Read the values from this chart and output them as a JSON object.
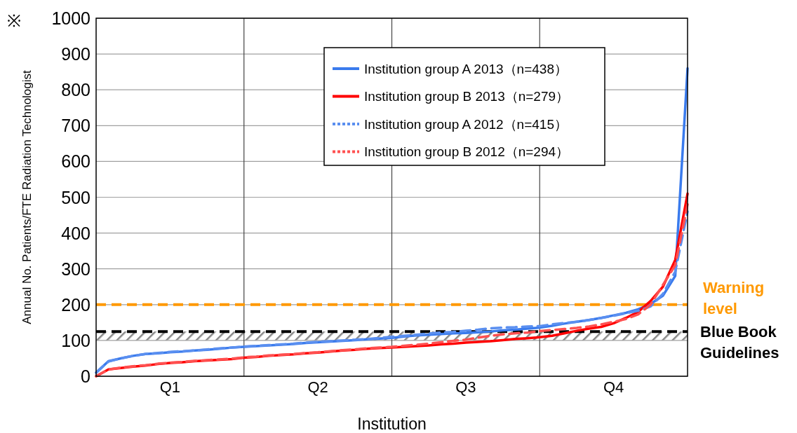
{
  "chart_data": {
    "type": "line",
    "ylabel": "Annual No. Patients/FTE Radiation Technologist",
    "xlabel": "Institution",
    "annotations": [
      "※"
    ],
    "categories": [
      null,
      null,
      null,
      null,
      null,
      null,
      "Q1",
      null,
      null,
      null,
      null,
      null,
      null,
      null,
      null,
      null,
      null,
      null,
      "Q2",
      null,
      null,
      null,
      null,
      null,
      null,
      null,
      null,
      null,
      null,
      null,
      "Q3",
      null,
      null,
      null,
      null,
      null,
      null,
      null,
      null,
      null,
      null,
      null,
      "Q4",
      null,
      null,
      null,
      null,
      null,
      null
    ],
    "ylim": [
      0,
      1000
    ],
    "yticks": [
      0,
      100,
      200,
      300,
      400,
      500,
      600,
      700,
      800,
      900,
      1000
    ],
    "grid": true,
    "legend": "top right",
    "series": [
      {
        "name": "Institution group A 2013（n=438）",
        "color": "#3a7bed",
        "line_style": "solid",
        "values": [
          10,
          42,
          50,
          57,
          62,
          64,
          67,
          69,
          72,
          74,
          77,
          80,
          82,
          84,
          86,
          88,
          90,
          93,
          95,
          97,
          99,
          101,
          103,
          105,
          107,
          111,
          114,
          116,
          118,
          120,
          121,
          123,
          125,
          128,
          130,
          133,
          136,
          141,
          147,
          152,
          157,
          163,
          170,
          177,
          187,
          202,
          225,
          280,
          860
        ]
      },
      {
        "name": "Institution group B 2013（n=279）",
        "color": "#ff0000",
        "line_style": "solid",
        "values": [
          0,
          19,
          23,
          27,
          30,
          34,
          37,
          39,
          42,
          44,
          46,
          48,
          52,
          54,
          57,
          59,
          61,
          64,
          66,
          69,
          72,
          74,
          77,
          79,
          80,
          82,
          84,
          86,
          89,
          91,
          94,
          96,
          98,
          101,
          104,
          106,
          109,
          113,
          120,
          127,
          133,
          138,
          148,
          163,
          180,
          210,
          250,
          325,
          510
        ]
      },
      {
        "name": "Institution group A 2012（n=415）",
        "color": "#5a8ff0",
        "line_style": "dashed",
        "values": [
          10,
          41,
          50,
          57,
          62,
          65,
          68,
          70,
          72,
          75,
          78,
          80,
          83,
          85,
          87,
          89,
          91,
          94,
          96,
          98,
          100,
          102,
          104,
          107,
          110,
          113,
          116,
          119,
          122,
          124,
          127,
          130,
          134,
          136,
          137,
          139,
          140,
          145,
          149,
          152,
          157,
          163,
          169,
          176,
          183,
          195,
          230,
          292,
          460
        ]
      },
      {
        "name": "Institution group B 2012（n=294）",
        "color": "#ff5050",
        "line_style": "dashed",
        "values": [
          0,
          19,
          24,
          28,
          31,
          35,
          38,
          40,
          43,
          45,
          47,
          49,
          53,
          55,
          58,
          60,
          62,
          65,
          67,
          70,
          73,
          75,
          78,
          80,
          82,
          85,
          88,
          91,
          95,
          99,
          102,
          108,
          113,
          117,
          120,
          122,
          126,
          129,
          132,
          135,
          139,
          145,
          152,
          160,
          173,
          200,
          255,
          310,
          480
        ]
      }
    ],
    "ref_lines": [
      {
        "axis": "y",
        "value": 200,
        "label": "Warning level",
        "color": "#ff9900",
        "line_style": "dashed"
      },
      {
        "axis": "y",
        "value": 125,
        "label": "Blue Book Guidelines",
        "color": "#000000",
        "line_style": "dashed"
      }
    ],
    "bands": [
      {
        "axis": "y",
        "from": 100,
        "to": 125,
        "color": "#888888"
      }
    ]
  }
}
